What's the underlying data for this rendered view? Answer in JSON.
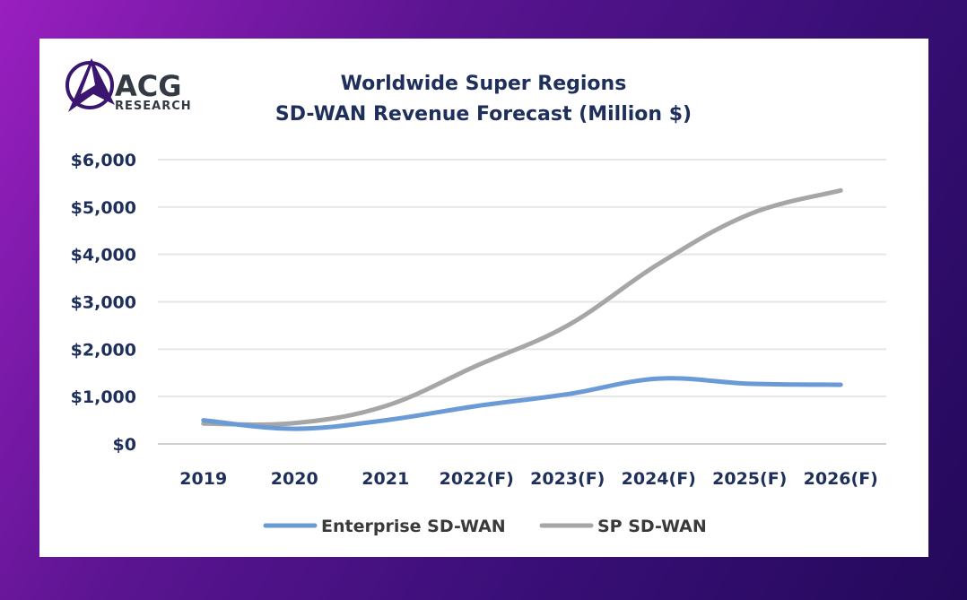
{
  "logo": {
    "text": "ACG",
    "subtext": "RESEARCH"
  },
  "colors": {
    "background_start": "#9a1fc0",
    "background_end": "#23095a",
    "title": "#1f2f5c",
    "grid": "#e6e6e6",
    "axis": "#d0d0d0",
    "logo_mark": "#3a1670"
  },
  "chart_data": {
    "type": "line",
    "title_lines": [
      "Worldwide Super Regions",
      "SD-WAN Revenue Forecast (Million $)"
    ],
    "categories": [
      "2019",
      "2020",
      "2021",
      "2022(F)",
      "2023(F)",
      "2024(F)",
      "2025(F)",
      "2026(F)"
    ],
    "y_tick_labels": [
      "$0",
      "$1,000",
      "$2,000",
      "$3,000",
      "$4,000",
      "$5,000",
      "$6,000"
    ],
    "ylim": [
      0,
      6000
    ],
    "grid": true,
    "legend_position": "bottom",
    "series": [
      {
        "name": "Enterprise SD-WAN",
        "color": "#6b9bd6",
        "values": [
          500,
          320,
          500,
          800,
          1050,
          1380,
          1270,
          1250
        ]
      },
      {
        "name": "SP SD-WAN",
        "color": "#a6a6a6",
        "values": [
          430,
          440,
          800,
          1650,
          2500,
          3800,
          4850,
          5350
        ]
      }
    ]
  }
}
